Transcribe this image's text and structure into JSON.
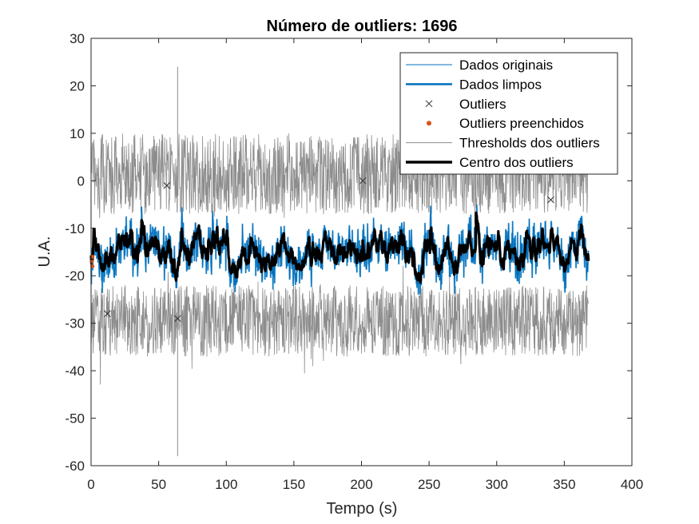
{
  "chart_data": {
    "type": "line",
    "title": "Número de outliers: 1696",
    "xlabel": "Tempo (s)",
    "ylabel": "U.A.",
    "xlim": [
      0,
      400
    ],
    "ylim": [
      -60,
      30
    ],
    "xticks": [
      0,
      50,
      100,
      150,
      200,
      250,
      300,
      350,
      400
    ],
    "yticks": [
      30,
      20,
      10,
      0,
      -10,
      -20,
      -30,
      -40,
      -50,
      -60
    ],
    "x_end": 368,
    "grid": false,
    "legend_position": "top-right",
    "outlier_count": 1696,
    "series": [
      {
        "name": "Dados originais",
        "style": "thin-line",
        "color": "#0072BD"
      },
      {
        "name": "Dados limpos",
        "style": "thick-line",
        "color": "#0072BD"
      },
      {
        "name": "Outliers",
        "style": "x-marker",
        "color": "#333333"
      },
      {
        "name": "Outliers preenchidos",
        "style": "dot-marker",
        "color": "#D95319"
      },
      {
        "name": "Thresholds dos outliers",
        "style": "thin-line",
        "color": "#8c8c8c"
      },
      {
        "name": "Centro dos outliers",
        "style": "thick-line",
        "color": "#000000"
      }
    ],
    "approx_signal": {
      "center_mean": -15,
      "center_range": [
        -22,
        -5
      ],
      "upper_threshold_range": [
        -7,
        10
      ],
      "lower_threshold_range": [
        -37,
        -22
      ],
      "spike_upper": {
        "x": 64,
        "y": 24
      },
      "spike_lower": {
        "x": 64,
        "y": -58
      },
      "outlier_samples": [
        {
          "x": 56,
          "y": -1
        },
        {
          "x": 201,
          "y": 0
        },
        {
          "x": 12,
          "y": -28
        },
        {
          "x": 64,
          "y": -29
        },
        {
          "x": 340,
          "y": -4
        }
      ]
    }
  },
  "colors": {
    "original": "#0072BD",
    "threshold": "#8c8c8c",
    "center": "#000000",
    "filled": "#D95319"
  }
}
